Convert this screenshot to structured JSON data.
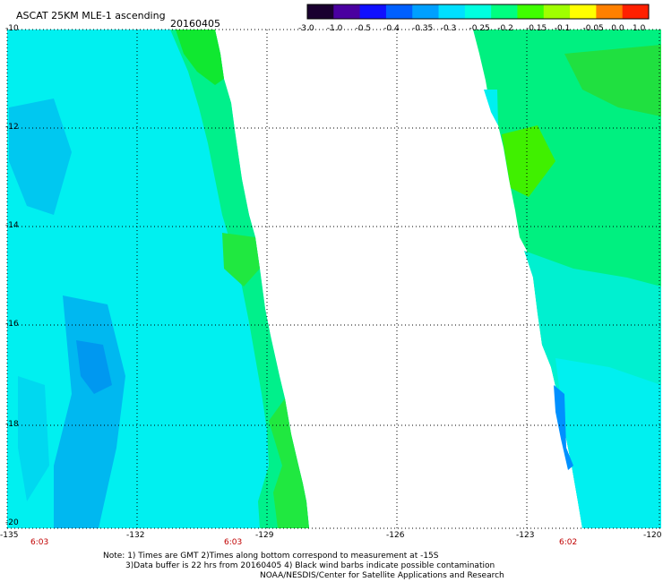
{
  "header": {
    "title": "ASCAT 25KM MLE-1 ascending",
    "date": "20160405"
  },
  "colorbar": {
    "labels": [
      "-3.0",
      "-1.0",
      "-0.5",
      "-0.4",
      "-0.35",
      "-0.3",
      "-0.25",
      "-0.2",
      "-0.15",
      "-0.1",
      "-0.05",
      "0.0",
      "1.0"
    ],
    "colors": [
      "#1a0030",
      "#4a00a0",
      "#1010ff",
      "#0060ff",
      "#00a0ff",
      "#00e0ff",
      "#00ffe0",
      "#00ff80",
      "#40ff00",
      "#a0ff00",
      "#ffff00",
      "#ff8000",
      "#ff2000"
    ]
  },
  "axes": {
    "lat_labels": [
      "-10",
      "-12",
      "-14",
      "-16",
      "-18",
      "-20"
    ],
    "lon_labels": [
      "-135",
      "-132",
      "-129",
      "-126",
      "-123",
      "-120"
    ]
  },
  "times": [
    "6:03",
    "6:03",
    "6:02"
  ],
  "notes": [
    "Note: 1) Times are GMT 2)Times along bottom correspond to measurement at -15S",
    "3)Data buffer is 22 hrs from 20160405 4) Black wind barbs indicate possible contamination",
    "NOAA/NESDIS/Center for Satellite Applications and Research"
  ]
}
